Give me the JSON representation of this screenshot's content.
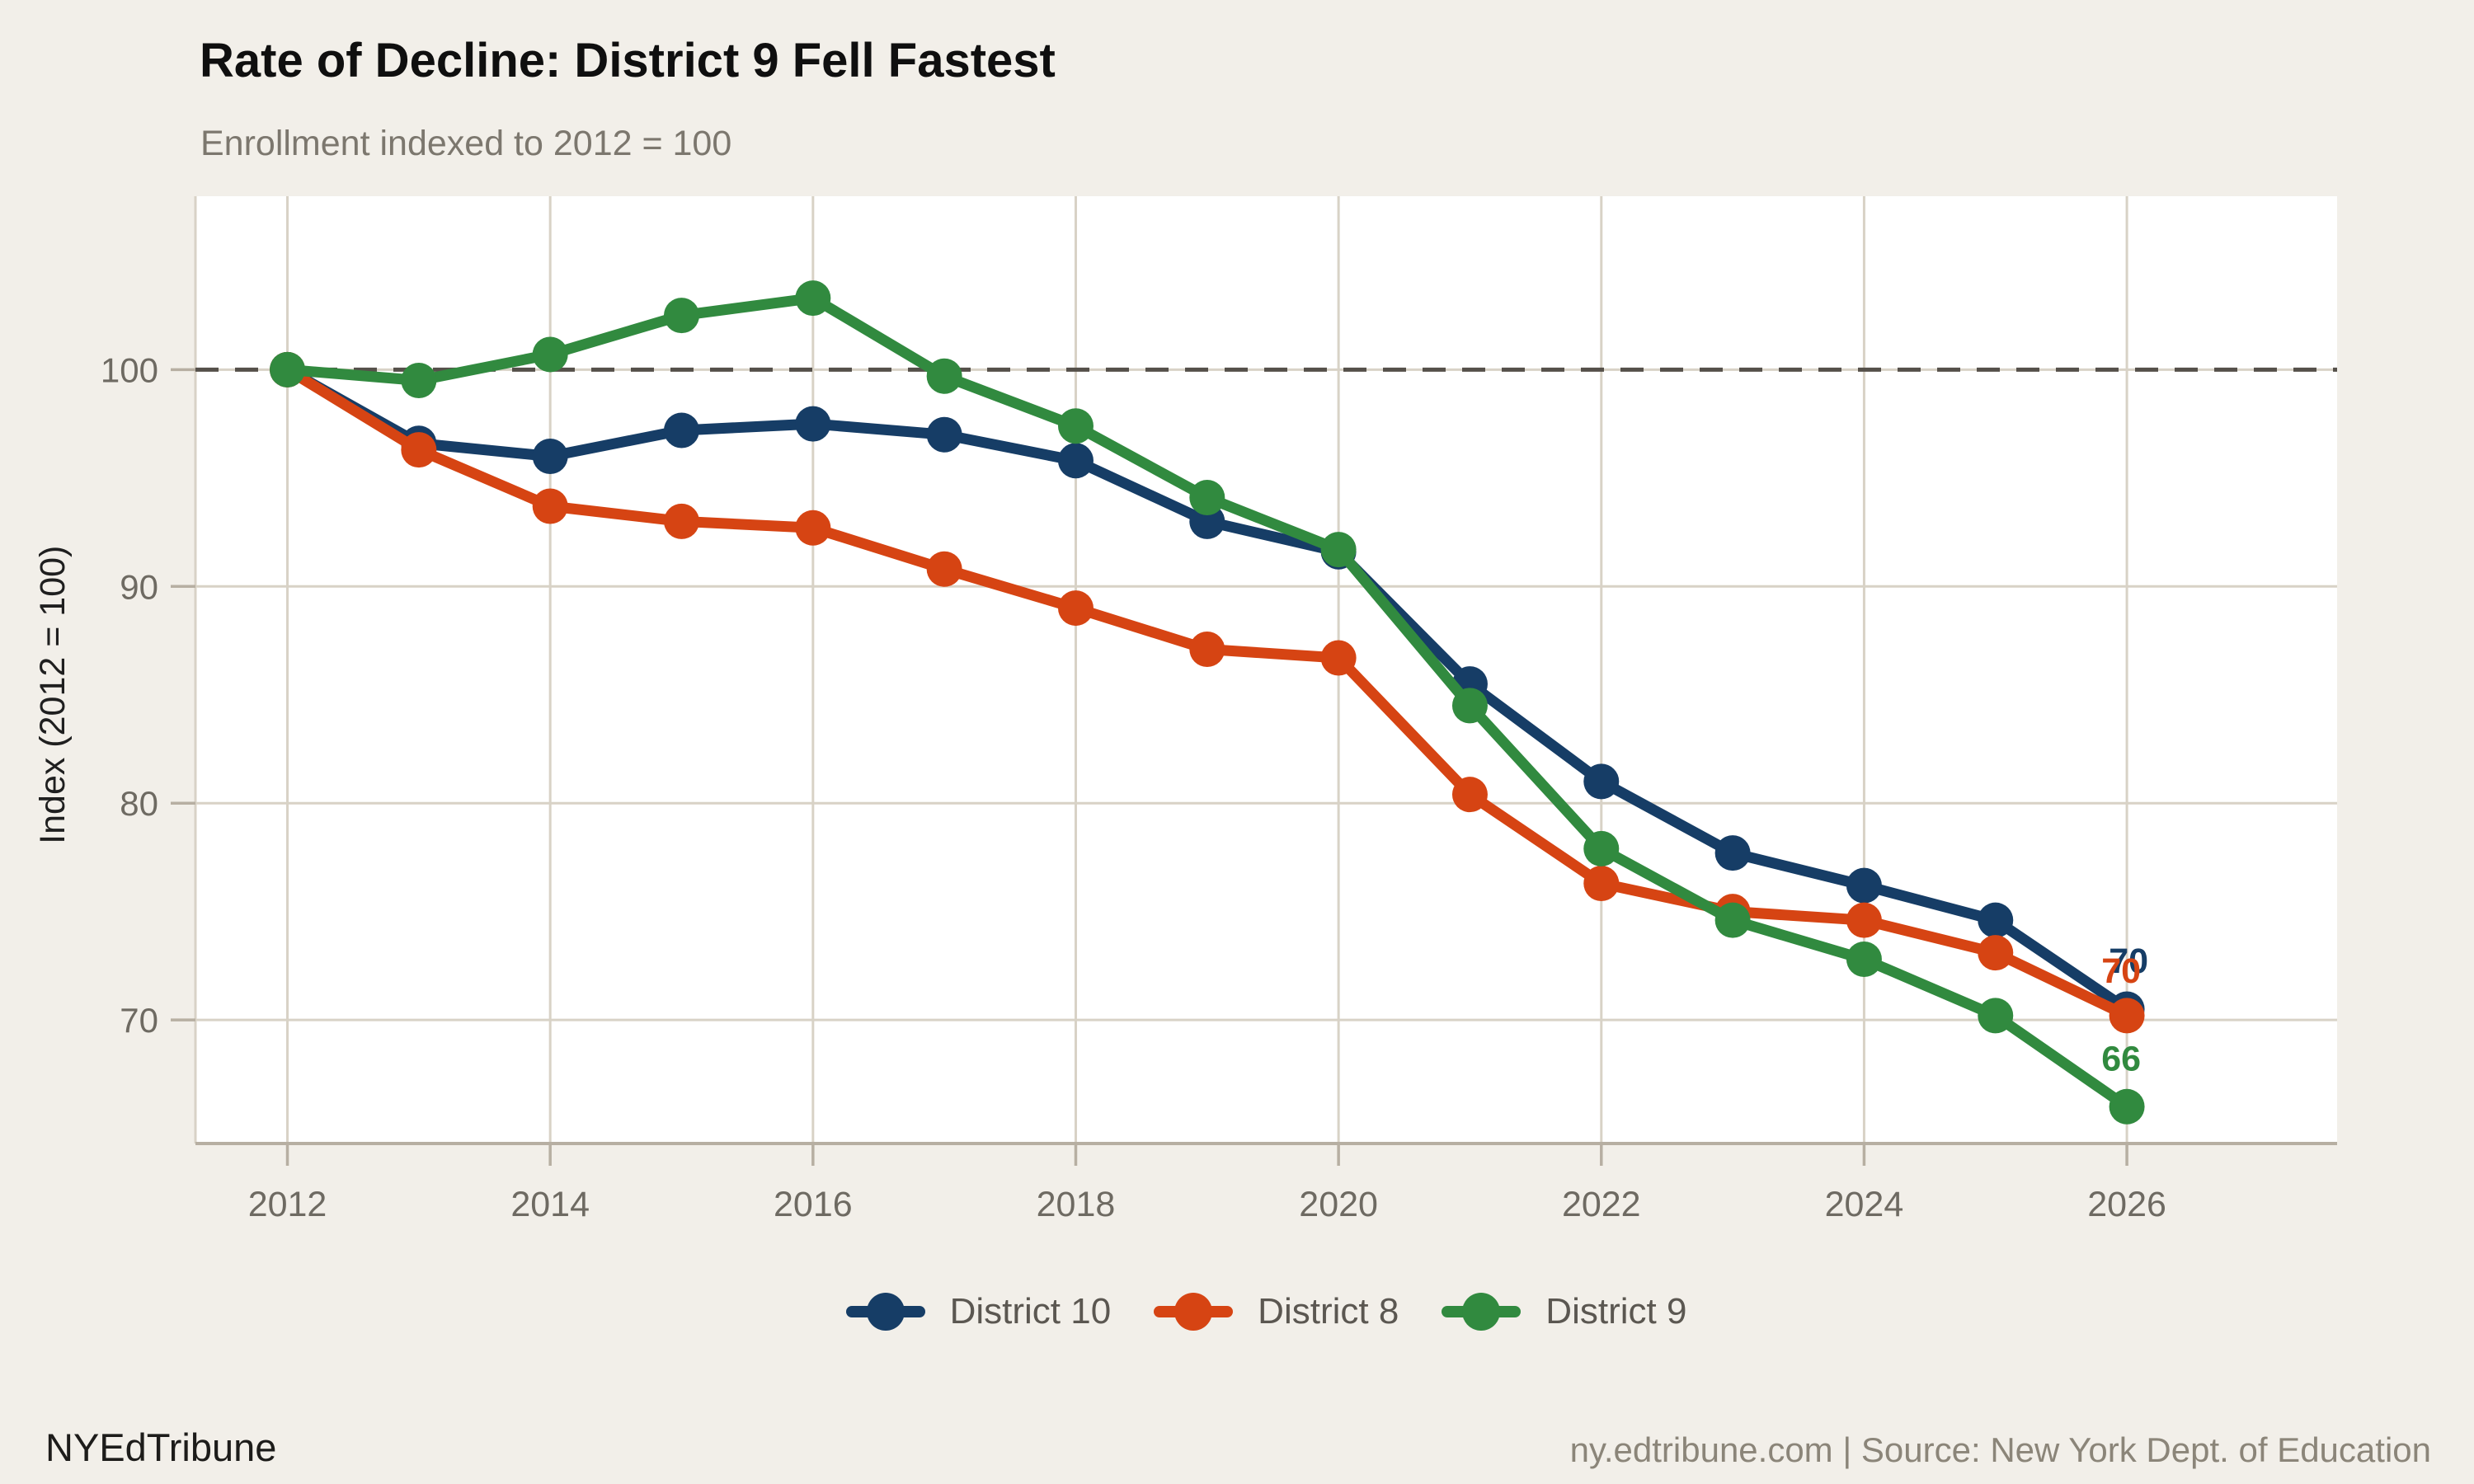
{
  "page": {
    "brand": "NYEdTribune",
    "credit": "ny.edtribune.com | Source: New York Dept. of Education"
  },
  "colors": {
    "background": "#f2efe9",
    "plot_background": "#ffffff",
    "gridline": "#d8d2c6",
    "axis_line": "#b7afa2",
    "reference_line": "#55504a",
    "tick_label": "#6e6a62",
    "axis_title": "#1f1f1f",
    "title": "#0f0f0f",
    "subtitle": "#7c776e",
    "legend_text": "#5b5751",
    "credit_text": "#8b8579"
  },
  "chart_data": {
    "type": "line",
    "title": "Rate of Decline: District 9 Fell Fastest",
    "subtitle": "Enrollment indexed to 2012 = 100",
    "xlabel": "",
    "ylabel": "Index (2012 = 100)",
    "x": [
      2012,
      2013,
      2014,
      2015,
      2016,
      2017,
      2018,
      2019,
      2020,
      2021,
      2022,
      2023,
      2024,
      2025,
      2026
    ],
    "series": [
      {
        "name": "District 10",
        "color": "#163d66",
        "values": [
          100,
          96.6,
          96.0,
          97.2,
          97.5,
          97.0,
          95.8,
          93.0,
          91.6,
          85.5,
          81.0,
          77.7,
          76.2,
          74.6,
          70.5
        ],
        "end_label": "70"
      },
      {
        "name": "District 8",
        "color": "#d64413",
        "values": [
          100,
          96.3,
          93.7,
          93.0,
          92.7,
          90.8,
          89.0,
          87.1,
          86.7,
          80.4,
          76.3,
          75.0,
          74.6,
          73.1,
          70.2
        ],
        "end_label": "70"
      },
      {
        "name": "District 9",
        "color": "#318a3f",
        "values": [
          100,
          99.5,
          100.7,
          102.5,
          103.3,
          99.7,
          97.4,
          94.1,
          91.7,
          84.5,
          77.9,
          74.6,
          72.8,
          70.2,
          66.0
        ],
        "end_label": "66"
      }
    ],
    "x_ticks": [
      2012,
      2014,
      2016,
      2018,
      2020,
      2022,
      2024,
      2026
    ],
    "y_ticks": [
      70,
      80,
      90,
      100
    ],
    "xlim": [
      2011.3,
      2027.6
    ],
    "ylim": [
      64.3,
      108
    ],
    "grid": true,
    "reference_line_y": 100,
    "legend_position": "bottom"
  }
}
